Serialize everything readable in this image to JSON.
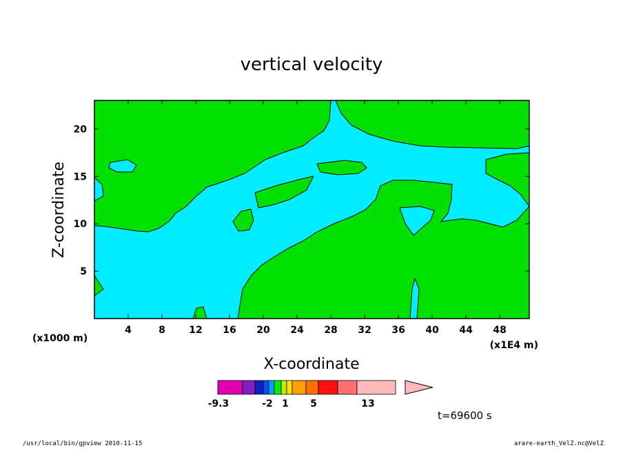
{
  "chart_data": {
    "type": "contour",
    "title": "vertical velocity",
    "xlabel": "X-coordinate",
    "ylabel": "Z-coordinate",
    "x_unit_note": "(x1E4 m)",
    "y_unit_note": "(x1000 m)",
    "xlim": [
      0,
      51.5
    ],
    "ylim": [
      0,
      23
    ],
    "x_ticks": [
      4,
      8,
      12,
      16,
      20,
      24,
      28,
      32,
      36,
      40,
      44,
      48
    ],
    "y_ticks": [
      5,
      10,
      15,
      20
    ],
    "time_label": "t=69600 s",
    "colorbar": {
      "labels": [
        "-9.3",
        "-2",
        "1",
        "5",
        "13"
      ],
      "colors": [
        "#e000b0",
        "#8020c0",
        "#1020c0",
        "#0050ff",
        "#00a0ff",
        "#00ee00",
        "#c0ee00",
        "#ffe000",
        "#ffa000",
        "#ff7000",
        "#ff1010",
        "#ff7070",
        "#ffbbbb"
      ]
    },
    "fill_colors": {
      "negative": "#00eeff",
      "positive": "#00e000"
    }
  },
  "footer": {
    "left": "/usr/local/bin/gpview  2010-11-15",
    "right": "arare-earth_VelZ.nc@VelZ"
  }
}
